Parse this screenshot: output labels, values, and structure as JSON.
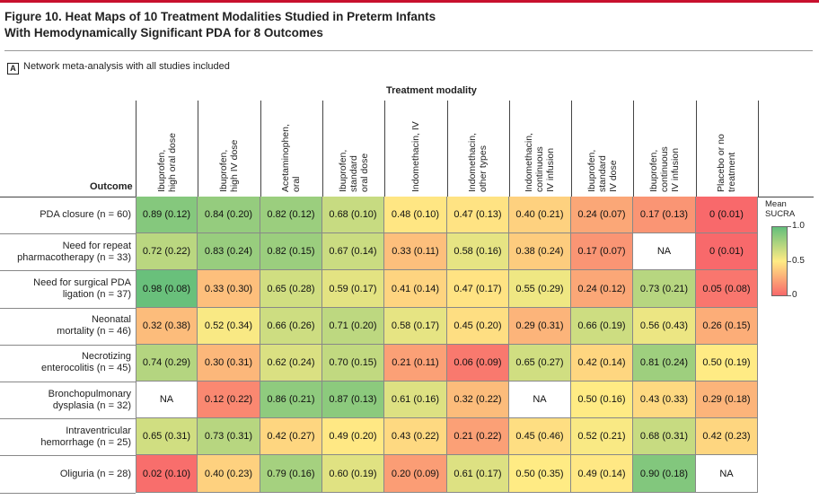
{
  "figure": {
    "title_line1": "Figure 10. Heat Maps of 10 Treatment Modalities Studied in Preterm Infants",
    "title_line2": "With Hemodynamically Significant PDA for 8 Outcomes",
    "panel_letter": "A",
    "panel_caption": "Network meta-analysis with all studies included"
  },
  "chart_data": {
    "type": "heatmap",
    "xlabel": "Treatment modality",
    "ylabel": "Outcome",
    "columns": [
      "Ibuprofen,\nhigh oral dose",
      "Ibuprofen,\nhigh IV dose",
      "Acetaminophen,\noral",
      "Ibuprofen,\nstandard\noral dose",
      "Indomethacin, IV",
      "Indomethacin,\nother types",
      "Indomethacin,\ncontinuous\nIV infusion",
      "Ibuprofen,\nstandard\nIV dose",
      "Ibuprofen,\ncontinuous\nIV infusion",
      "Placebo or no\ntreatment"
    ],
    "rows": [
      "PDA closure (n = 60)",
      "Need for repeat\npharmacotherapy (n = 33)",
      "Need for surgical PDA\nligation (n = 37)",
      "Neonatal\nmortality (n = 46)",
      "Necrotizing\nenterocolitis (n = 45)",
      "Bronchopulmonary\ndysplasia (n = 32)",
      "Intraventricular\nhemorrhage (n = 25)",
      "Oliguria (n = 28)"
    ],
    "mean": [
      [
        0.89,
        0.84,
        0.82,
        0.68,
        0.48,
        0.47,
        0.4,
        0.24,
        0.17,
        0
      ],
      [
        0.72,
        0.83,
        0.82,
        0.67,
        0.33,
        0.58,
        0.38,
        0.17,
        null,
        0
      ],
      [
        0.98,
        0.33,
        0.65,
        0.59,
        0.41,
        0.47,
        0.55,
        0.24,
        0.73,
        0.05
      ],
      [
        0.32,
        0.52,
        0.66,
        0.71,
        0.58,
        0.45,
        0.29,
        0.66,
        0.56,
        0.26
      ],
      [
        0.74,
        0.3,
        0.62,
        0.7,
        0.21,
        0.06,
        0.65,
        0.42,
        0.81,
        0.5
      ],
      [
        null,
        0.12,
        0.86,
        0.87,
        0.61,
        0.32,
        null,
        0.5,
        0.43,
        0.29
      ],
      [
        0.65,
        0.73,
        0.42,
        0.49,
        0.43,
        0.21,
        0.45,
        0.52,
        0.68,
        0.42
      ],
      [
        0.02,
        0.4,
        0.79,
        0.6,
        0.2,
        0.61,
        0.5,
        0.49,
        0.9,
        null
      ]
    ],
    "cell_text": [
      [
        "0.89 (0.12)",
        "0.84 (0.20)",
        "0.82 (0.12)",
        "0.68 (0.10)",
        "0.48 (0.10)",
        "0.47 (0.13)",
        "0.40 (0.21)",
        "0.24 (0.07)",
        "0.17 (0.13)",
        "0 (0.01)"
      ],
      [
        "0.72 (0.22)",
        "0.83 (0.24)",
        "0.82 (0.15)",
        "0.67 (0.14)",
        "0.33 (0.11)",
        "0.58 (0.16)",
        "0.38 (0.24)",
        "0.17 (0.07)",
        "NA",
        "0 (0.01)"
      ],
      [
        "0.98 (0.08)",
        "0.33 (0.30)",
        "0.65 (0.28)",
        "0.59 (0.17)",
        "0.41 (0.14)",
        "0.47 (0.17)",
        "0.55 (0.29)",
        "0.24 (0.12)",
        "0.73 (0.21)",
        "0.05 (0.08)"
      ],
      [
        "0.32 (0.38)",
        "0.52 (0.34)",
        "0.66 (0.26)",
        "0.71 (0.20)",
        "0.58 (0.17)",
        "0.45 (0.20)",
        "0.29 (0.31)",
        "0.66 (0.19)",
        "0.56 (0.43)",
        "0.26 (0.15)"
      ],
      [
        "0.74 (0.29)",
        "0.30 (0.31)",
        "0.62 (0.24)",
        "0.70 (0.15)",
        "0.21 (0.11)",
        "0.06 (0.09)",
        "0.65 (0.27)",
        "0.42 (0.14)",
        "0.81 (0.24)",
        "0.50 (0.19)"
      ],
      [
        "NA",
        "0.12 (0.22)",
        "0.86 (0.21)",
        "0.87 (0.13)",
        "0.61 (0.16)",
        "0.32 (0.22)",
        "NA",
        "0.50 (0.16)",
        "0.43 (0.33)",
        "0.29 (0.18)"
      ],
      [
        "0.65 (0.31)",
        "0.73 (0.31)",
        "0.42 (0.27)",
        "0.49 (0.20)",
        "0.43 (0.22)",
        "0.21 (0.22)",
        "0.45 (0.46)",
        "0.52 (0.21)",
        "0.68 (0.31)",
        "0.42 (0.23)"
      ],
      [
        "0.02 (0.10)",
        "0.40 (0.23)",
        "0.79 (0.16)",
        "0.60 (0.19)",
        "0.20 (0.09)",
        "0.61 (0.17)",
        "0.50 (0.35)",
        "0.49 (0.14)",
        "0.90 (0.18)",
        "NA"
      ]
    ],
    "legend": {
      "title": "Mean\nSUCRA",
      "ticks": [
        "1.0",
        "0.5",
        "0"
      ],
      "range": [
        0,
        1
      ],
      "colors": {
        "low": "#f8696b",
        "mid": "#ffeb84",
        "high": "#63be7b",
        "na": "#ffffff"
      }
    }
  }
}
